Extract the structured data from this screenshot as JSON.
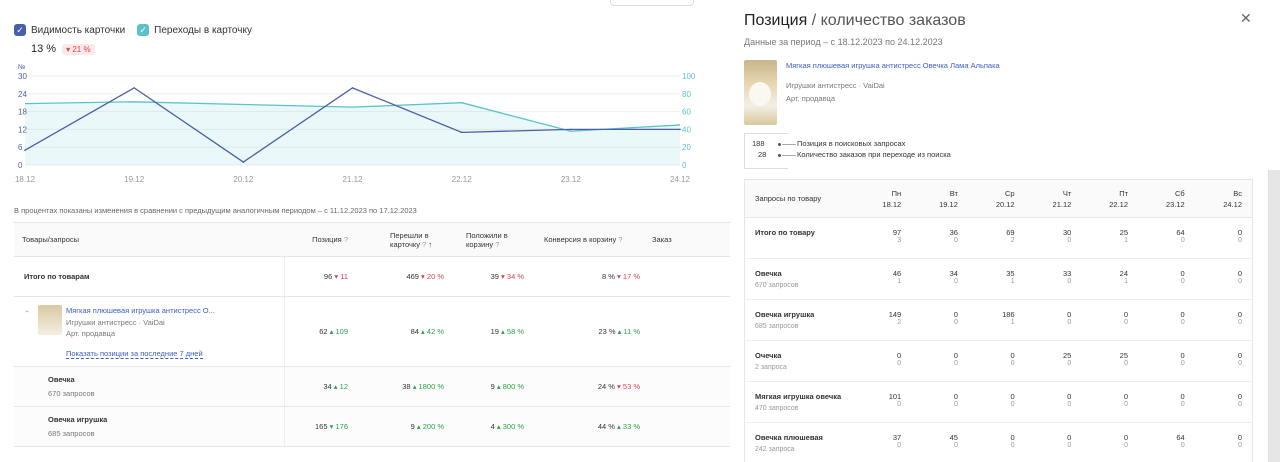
{
  "legend": {
    "item1": "Видимость карточки",
    "item2": "Переходы в карточку"
  },
  "kpi": {
    "value": "13 %",
    "delta": "▾ 21 %"
  },
  "chart_data": {
    "type": "line",
    "categories": [
      "18.12",
      "19.12",
      "20.12",
      "21.12",
      "22.12",
      "23.12",
      "24.12"
    ],
    "left_axis": {
      "unit": "№",
      "ticks": [
        "30",
        "24",
        "18",
        "12",
        "6",
        "0"
      ],
      "ylim": [
        0,
        30
      ]
    },
    "right_axis": {
      "ticks": [
        "100",
        "80",
        "60",
        "40",
        "20",
        "0"
      ],
      "ylim": [
        0,
        100
      ]
    },
    "series": [
      {
        "color": "#4a5fa8",
        "axis": "left",
        "values": [
          5,
          26,
          1,
          26,
          11,
          12,
          12
        ]
      },
      {
        "color": "#5bc2cc",
        "axis": "right",
        "values": [
          69,
          71,
          68,
          65,
          70,
          38,
          45
        ]
      }
    ]
  },
  "note": "В процентах показаны изменения в сравнении с предыдущим аналогичным периодом – с 11.12.2023 по 17.12.2023",
  "left_table": {
    "headers": [
      "Товары/запросы",
      "Позиция",
      "Перешли в карточку",
      "Положили в корзину",
      "Конверсия в корзину",
      "Заказ"
    ],
    "total": {
      "label": "Итого по товарам",
      "pos": "96",
      "pos_d": "▾ 11",
      "go": "469",
      "go_d": "▾ 20 %",
      "cart": "39",
      "cart_d": "▾ 34 %",
      "conv": "8 %",
      "conv_d": "▾ 17 %"
    },
    "product": {
      "name": "Мягкая плюшевая игрушка антистресс О...",
      "cat": "Игрушки антистресс · VaiDai",
      "art": "Арт. продавца",
      "show": "Показать позиции за последние 7 дней",
      "pos": "62",
      "pos_d": "▴ 109",
      "go": "84",
      "go_d": "▴ 42 %",
      "cart": "19",
      "cart_d": "▴ 58 %",
      "conv": "23 %",
      "conv_d": "▴ 11 %"
    },
    "q1": {
      "name": "Овечка",
      "sub": "670 запросов",
      "pos": "34",
      "pos_d": "▴ 12",
      "go": "38",
      "go_d": "▴ 1800 %",
      "cart": "9",
      "cart_d": "▴ 800 %",
      "conv": "24 %",
      "conv_d": "▾ 53 %"
    },
    "q2": {
      "name": "Овечка игрушка",
      "sub": "685 запросов",
      "pos": "165",
      "pos_d": "▾ 176",
      "go": "9",
      "go_d": "▴ 200 %",
      "cart": "4",
      "cart_d": "▴ 300 %",
      "conv": "44 %",
      "conv_d": "▴ 33 %"
    }
  },
  "panel": {
    "title_a": "Позиция",
    "title_b": " / количество заказов",
    "period": "Данные за период – с 18.12.2023 по 24.12.2023",
    "product_name": "Мягкая плюшевая игрушка антистресс Овечка Лама Альпака",
    "product_cat": "Игрушки антистресс · VaiDai",
    "product_art": "Арт. продавца",
    "mini_a": "188",
    "mini_b": "28",
    "mini_a_label": "Позиция в поисковых запросах",
    "mini_b_label": "Количество заказов при переходе из поиска",
    "table_head": "Запросы по товару",
    "days": [
      {
        "d": "Пн",
        "date": "18.12"
      },
      {
        "d": "Вт",
        "date": "19.12"
      },
      {
        "d": "Ср",
        "date": "20.12"
      },
      {
        "d": "Чт",
        "date": "21.12"
      },
      {
        "d": "Пт",
        "date": "22.12"
      },
      {
        "d": "Сб",
        "date": "23.12"
      },
      {
        "d": "Вс",
        "date": "24.12"
      }
    ],
    "rows": [
      {
        "name": "Итого по товару",
        "sub": "",
        "top": [
          "97",
          "36",
          "69",
          "30",
          "25",
          "64",
          "0"
        ],
        "bot": [
          "3",
          "0",
          "2",
          "0",
          "1",
          "0",
          "0"
        ]
      },
      {
        "name": "Овечка",
        "sub": "670 запросов",
        "top": [
          "46",
          "34",
          "35",
          "33",
          "24",
          "0",
          "0"
        ],
        "bot": [
          "1",
          "0",
          "1",
          "0",
          "1",
          "0",
          "0"
        ]
      },
      {
        "name": "Овечка игрушка",
        "sub": "685 запросов",
        "top": [
          "149",
          "0",
          "186",
          "0",
          "0",
          "0",
          "0"
        ],
        "bot": [
          "2",
          "0",
          "1",
          "0",
          "0",
          "0",
          "0"
        ]
      },
      {
        "name": "Очечка",
        "sub": "2 запроса",
        "top": [
          "0",
          "0",
          "0",
          "25",
          "25",
          "0",
          "0"
        ],
        "bot": [
          "0",
          "0",
          "0",
          "0",
          "0",
          "0",
          "0"
        ]
      },
      {
        "name": "Мягкая игрушка овечка",
        "sub": "470 запросов",
        "top": [
          "101",
          "0",
          "0",
          "0",
          "0",
          "0",
          "0"
        ],
        "bot": [
          "0",
          "0",
          "0",
          "0",
          "0",
          "0",
          "0"
        ]
      },
      {
        "name": "Овечка плюшевая",
        "sub": "242 запроса",
        "top": [
          "37",
          "45",
          "0",
          "0",
          "0",
          "64",
          "0"
        ],
        "bot": [
          "0",
          "0",
          "0",
          "0",
          "0",
          "0",
          "0"
        ]
      }
    ]
  }
}
